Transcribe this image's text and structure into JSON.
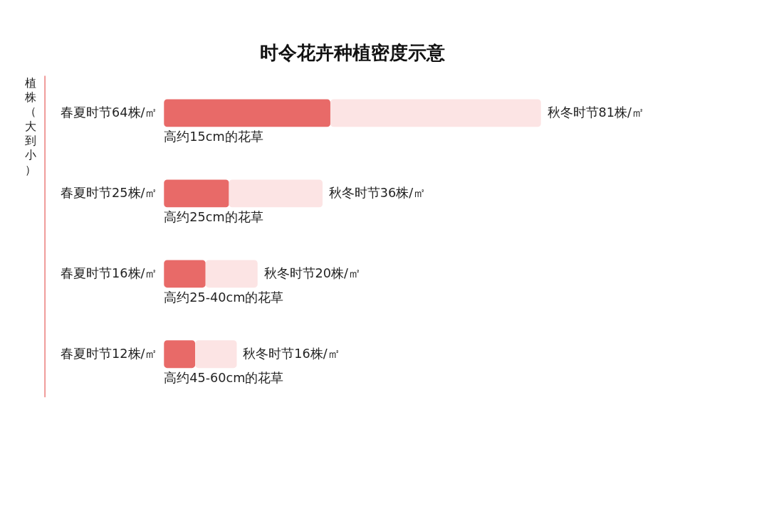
{
  "chart_data": {
    "type": "bar",
    "orientation": "horizontal",
    "stacked": true,
    "title": "时令花卉种植密度示意",
    "annotations": [
      "植株（大到小）"
    ],
    "categories": [
      "高约15cm的花草",
      "高约25cm的花草",
      "高约25-40cm的花草",
      "高约45-60cm的花草"
    ],
    "series": [
      {
        "color": "#e86a68",
        "values": [
          64,
          25,
          16,
          12
        ],
        "value_labels": [
          "春夏时节64株/㎡",
          "春夏时节25株/㎡",
          "春夏时节16株/㎡",
          "春夏时节12株/㎡"
        ]
      },
      {
        "color": "#fce4e4",
        "values": [
          81,
          36,
          20,
          16
        ],
        "value_labels": [
          "秋冬时节81株/㎡",
          "秋冬时节36株/㎡",
          "秋冬时节20株/㎡",
          "秋冬时节16株/㎡"
        ]
      }
    ]
  }
}
